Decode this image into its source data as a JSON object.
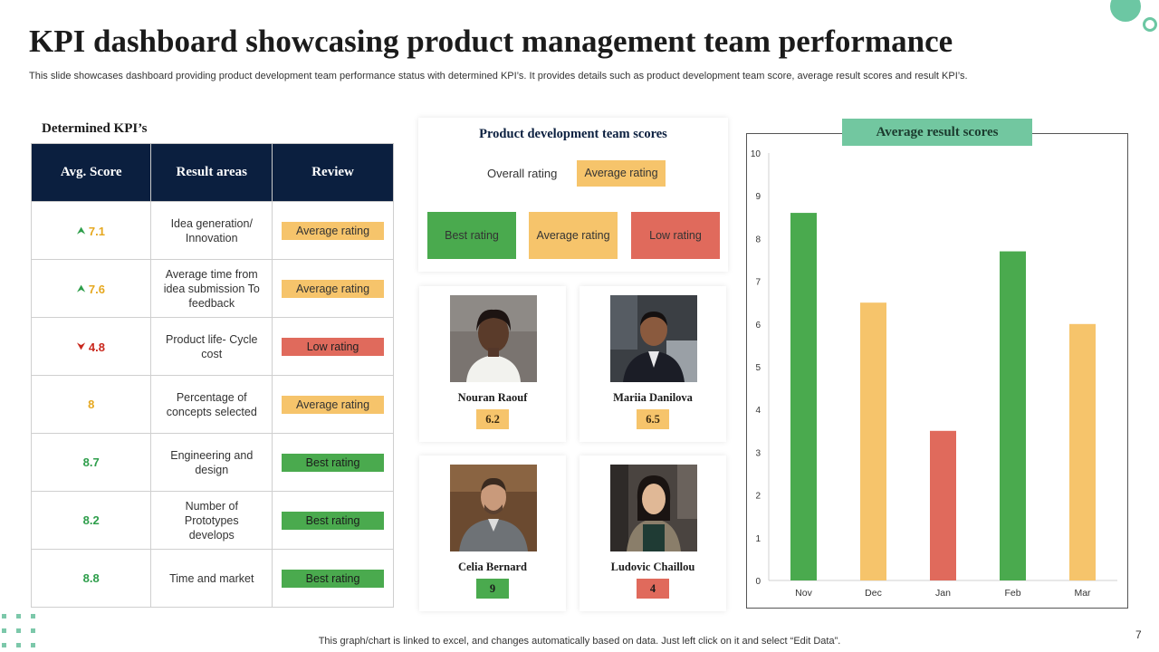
{
  "slide": {
    "title": "KPI dashboard showcasing product management team performance",
    "subtitle": "This slide showcases dashboard providing product development team performance status with determined KPI’s. It provides details such as product development team score, average result scores and result KPI’s.",
    "footer": "This graph/chart is linked to excel,  and changes automatically based on data. Just left click on it and select “Edit Data”.",
    "page_number": "7"
  },
  "colors": {
    "best": "#4aaa4e",
    "average": "#f6c46b",
    "low": "#e06a5c",
    "navy": "#0b1f3f",
    "teal": "#72c7a0",
    "green_text": "#2e9e4b",
    "amber_text": "#e6a820",
    "red_text": "#c9281d"
  },
  "kpi": {
    "heading": "Determined KPI’s",
    "headers": [
      "Avg. Score",
      "Result areas",
      "Review"
    ],
    "rows": [
      {
        "score": "7.1",
        "trend": "up",
        "area": "Idea generation/ Innovation",
        "review": "Average  rating",
        "level": "average"
      },
      {
        "score": "7.6",
        "trend": "up",
        "area": "Average  time from idea submission To feedback",
        "review": "Average  rating",
        "level": "average"
      },
      {
        "score": "4.8",
        "trend": "down",
        "area": "Product life- Cycle cost",
        "review": "Low rating",
        "level": "low"
      },
      {
        "score": "8",
        "trend": "none",
        "area": "Percentage of concepts selected",
        "review": "Average  rating",
        "level": "average"
      },
      {
        "score": "8.7",
        "trend": "none",
        "area": "Engineering and design",
        "review": "Best rating",
        "level": "best"
      },
      {
        "score": "8.2",
        "trend": "none",
        "area": "Number  of Prototypes develops",
        "review": "Best rating",
        "level": "best"
      },
      {
        "score": "8.8",
        "trend": "none",
        "area": "Time and market",
        "review": "Best rating",
        "level": "best"
      }
    ]
  },
  "team_scores": {
    "title": "Product  development  team scores",
    "overall_label": "Overall  rating",
    "overall_value": "Average  rating",
    "legend": [
      {
        "label": "Best rating",
        "level": "best"
      },
      {
        "label": "Average  rating",
        "level": "average"
      },
      {
        "label": "Low rating",
        "level": "low"
      }
    ]
  },
  "team": [
    {
      "name": "Nouran  Raouf",
      "score": "6.2",
      "level": "average"
    },
    {
      "name": "Mariia  Danilova",
      "score": "6.5",
      "level": "average"
    },
    {
      "name": "Celia Bernard",
      "score": "9",
      "level": "best"
    },
    {
      "name": "Ludovic  Chaillou",
      "score": "4",
      "level": "low"
    }
  ],
  "chart_data": {
    "type": "bar",
    "title": "Average result scores",
    "categories": [
      "Nov",
      "Dec",
      "Jan",
      "Feb",
      "Mar"
    ],
    "values": [
      8.6,
      6.5,
      3.5,
      7.7,
      6.0
    ],
    "bar_levels": [
      "best",
      "average",
      "low",
      "best",
      "average"
    ],
    "ylim": [
      0,
      10
    ],
    "yticks": [
      0,
      1,
      2,
      3,
      4,
      5,
      6,
      7,
      8,
      9,
      10
    ],
    "xlabel": "",
    "ylabel": "",
    "grid": false
  }
}
